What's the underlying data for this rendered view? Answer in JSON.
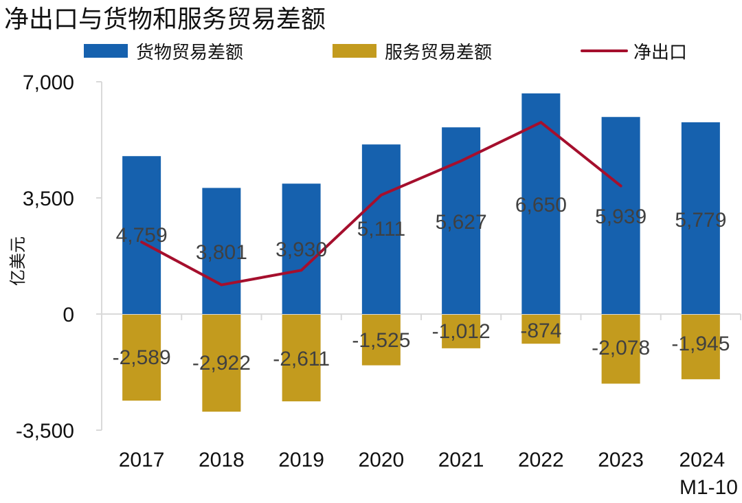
{
  "chart_data": {
    "type": "bar",
    "title": "净出口与货物和服务贸易差额",
    "ylabel": "亿美元",
    "xlabel": "",
    "ylim": [
      -3500,
      7000
    ],
    "yticks": [
      7000,
      3500,
      0,
      -3500
    ],
    "ytick_labels": [
      "7,000",
      "3,500",
      "0",
      "-3,500"
    ],
    "grid": false,
    "legend_position": "top",
    "categories": [
      "2017",
      "2018",
      "2019",
      "2020",
      "2021",
      "2022",
      "2023",
      "2024\nM1-10"
    ],
    "category_lines": [
      [
        "2017"
      ],
      [
        "2018"
      ],
      [
        "2019"
      ],
      [
        "2020"
      ],
      [
        "2021"
      ],
      [
        "2022"
      ],
      [
        "2023"
      ],
      [
        "2024",
        "M1-10"
      ]
    ],
    "series": [
      {
        "name": "货物贸易差额",
        "type": "bar",
        "color": "#1661AE",
        "values": [
          4759,
          3801,
          3930,
          5111,
          5627,
          6650,
          5939,
          5779
        ],
        "labels": [
          "4,759",
          "3,801",
          "3,930",
          "5,111",
          "5,627",
          "6,650",
          "5,939",
          "5,779"
        ]
      },
      {
        "name": "服务贸易差额",
        "type": "bar",
        "color": "#C39B1E",
        "values": [
          -2589,
          -2922,
          -2611,
          -1525,
          -1012,
          -874,
          -2078,
          -1945
        ],
        "labels": [
          "-2,589",
          "-2,922",
          "-2,611",
          "-1,525",
          "-1,012",
          "-874",
          "-2,078",
          "-1,945"
        ]
      },
      {
        "name": "净出口",
        "type": "line",
        "color": "#A50F2D",
        "values": [
          2170,
          879,
          1319,
          3586,
          4615,
          5776,
          3861,
          null
        ]
      }
    ]
  }
}
